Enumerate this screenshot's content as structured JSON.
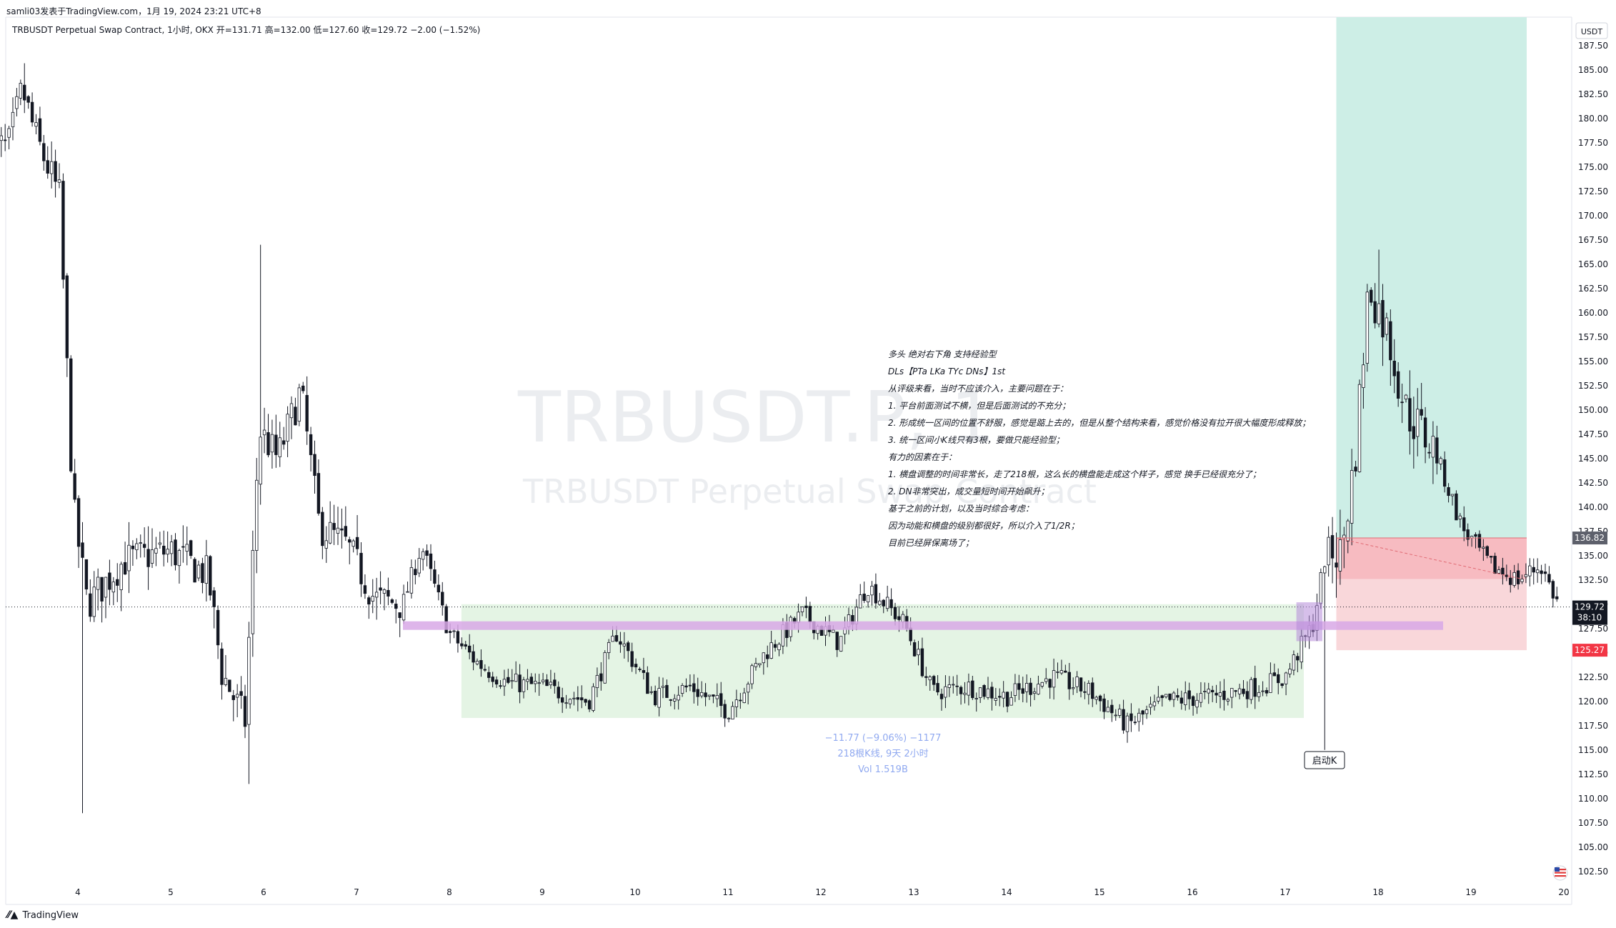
{
  "header_note": "samli03发表于TradingView.com，1月 19, 2024 23:21 UTC+8",
  "symbol": {
    "name": "TRBUSDT Perpetual Swap Contract, 1小时, OKX",
    "open_label": "开=131.71",
    "high_label": "高=132.00",
    "low_label": "低=127.60",
    "close_label": "收=129.72",
    "change_label": "−2.00 (−1.52%)"
  },
  "watermark": {
    "ticker": "TRBUSDT.P, 1",
    "description": "TRBUSDT Perpetual Swap Contract"
  },
  "currency_button": "USDT",
  "note_lines": [
    "多头 绝对右下角 支持经验型",
    "DLs【PTa LKa TYc DNs】1st",
    "从评级来看，当时不应该介入，主要问题在于：",
    "1. 平台前面测试不横，但是后面测试的不充分；",
    "2. 形成统一区间的位置不舒服，感觉是踮上去的，但是从整个结构来看，感觉价格没有拉开很大幅度形成释放；",
    "3. 统一区间小K线只有3根，要做只能经验型；",
    "有力的因素在于：",
    "1. 横盘调整的时间非常长，走了218根，这么长的横盘能走成这个样子，感觉 换手已经很充分了；",
    "2. DN非常突出，成交量短时间开始飙升；",
    "基于之前的计划，以及当时综合考虑：",
    "因为动能和横盘的级别都很好，所以介入了1/2R；",
    "目前已经屏保离场了；"
  ],
  "measure": {
    "line1": "−11.77 (−9.06%) −1177",
    "line2": "218根K线, 9天 2小时",
    "line3": "Vol 1.519B"
  },
  "marker_label": "启动K",
  "price_tags": {
    "entry": "136.82",
    "last": "129.72",
    "countdown": "38:10",
    "stop": "125.27",
    "last_color": "#131722",
    "stop_color": "#f23645",
    "entry_color": "#5d606b"
  },
  "footer": "TradingView",
  "chart_data": {
    "type": "candlestick",
    "title": "TRBUSDT Perpetual Swap Contract, 1小时, OKX",
    "y_axis": {
      "ticks": [
        "187.50",
        "185.00",
        "182.50",
        "180.00",
        "177.50",
        "175.00",
        "172.50",
        "170.00",
        "167.50",
        "165.00",
        "162.50",
        "160.00",
        "157.50",
        "155.00",
        "152.50",
        "150.00",
        "147.50",
        "145.00",
        "142.50",
        "140.00",
        "137.50",
        "135.00",
        "132.50",
        "130.00",
        "127.50",
        "125.00",
        "122.50",
        "120.00",
        "117.50",
        "115.00",
        "112.50",
        "110.00",
        "107.50",
        "105.00",
        "102.50"
      ],
      "range": [
        100.5,
        190.5
      ],
      "position": "right"
    },
    "x_axis": {
      "ticks": [
        "4",
        "5",
        "6",
        "7",
        "8",
        "9",
        "10",
        "11",
        "12",
        "13",
        "14",
        "15",
        "16",
        "17",
        "18",
        "19",
        "20"
      ],
      "unit": "day (Jan 2024)"
    },
    "grid": false,
    "up_color": "#131722",
    "down_color": "#131722",
    "long_position": {
      "entry": 136.82,
      "stop": 125.27,
      "target_top": 190.0,
      "start_day": 17.55,
      "end_day": 19.6,
      "profit_color": "#cdeee6",
      "loss_color": "#f9d7da"
    },
    "trading_range": {
      "high": 130.0,
      "low": 118.3,
      "start_day": 8.13,
      "end_day": 17.2,
      "color": "#e4f4e4"
    },
    "level_line": {
      "price": 127.8,
      "start_day": 7.5,
      "end_day": 18.7,
      "color": "#d8a8e6"
    },
    "last_price": 129.72,
    "key_points": [
      {
        "day": 3.25,
        "price": 177.0
      },
      {
        "day": 3.4,
        "price": 183.0
      },
      {
        "day": 3.55,
        "price": 178.0
      },
      {
        "day": 3.8,
        "price": 172.0
      },
      {
        "day": 3.95,
        "price": 140.0
      },
      {
        "day": 4.1,
        "price": 130.0
      },
      {
        "day": 4.5,
        "price": 134.5
      },
      {
        "day": 5.0,
        "price": 135.5
      },
      {
        "day": 5.4,
        "price": 133.0
      },
      {
        "day": 5.55,
        "price": 123.0
      },
      {
        "day": 5.8,
        "price": 118.0
      },
      {
        "day": 5.95,
        "price": 148.0
      },
      {
        "day": 6.15,
        "price": 145.0
      },
      {
        "day": 6.4,
        "price": 152.0
      },
      {
        "day": 6.6,
        "price": 138.0
      },
      {
        "day": 6.9,
        "price": 136.0
      },
      {
        "day": 7.2,
        "price": 130.5
      },
      {
        "day": 7.5,
        "price": 130.0
      },
      {
        "day": 7.7,
        "price": 136.0
      },
      {
        "day": 8.0,
        "price": 127.0
      },
      {
        "day": 8.3,
        "price": 124.0
      },
      {
        "day": 8.6,
        "price": 122.0
      },
      {
        "day": 9.0,
        "price": 121.5
      },
      {
        "day": 9.5,
        "price": 120.0
      },
      {
        "day": 9.8,
        "price": 127.0
      },
      {
        "day": 10.2,
        "price": 120.5
      },
      {
        "day": 10.6,
        "price": 121.5
      },
      {
        "day": 11.0,
        "price": 119.0
      },
      {
        "day": 11.4,
        "price": 125.0
      },
      {
        "day": 11.8,
        "price": 129.0
      },
      {
        "day": 12.2,
        "price": 126.0
      },
      {
        "day": 12.5,
        "price": 132.0
      },
      {
        "day": 12.9,
        "price": 128.0
      },
      {
        "day": 13.2,
        "price": 121.0
      },
      {
        "day": 13.6,
        "price": 121.5
      },
      {
        "day": 14.0,
        "price": 120.5
      },
      {
        "day": 14.5,
        "price": 122.5
      },
      {
        "day": 14.9,
        "price": 121.0
      },
      {
        "day": 15.3,
        "price": 117.5
      },
      {
        "day": 15.7,
        "price": 120.0
      },
      {
        "day": 16.2,
        "price": 120.5
      },
      {
        "day": 16.7,
        "price": 121.5
      },
      {
        "day": 17.0,
        "price": 122.5
      },
      {
        "day": 17.3,
        "price": 128.0
      },
      {
        "day": 17.45,
        "price": 136.0
      },
      {
        "day": 17.6,
        "price": 135.0
      },
      {
        "day": 17.75,
        "price": 145.0
      },
      {
        "day": 17.9,
        "price": 163.0
      },
      {
        "day": 18.1,
        "price": 158.0
      },
      {
        "day": 18.3,
        "price": 150.0
      },
      {
        "day": 18.6,
        "price": 146.0
      },
      {
        "day": 18.9,
        "price": 138.0
      },
      {
        "day": 19.2,
        "price": 134.0
      },
      {
        "day": 19.5,
        "price": 132.5
      },
      {
        "day": 19.75,
        "price": 134.0
      },
      {
        "day": 19.95,
        "price": 129.72
      }
    ],
    "wick_extremes": [
      {
        "day": 3.4,
        "high": 184.0
      },
      {
        "day": 4.05,
        "low": 108.5
      },
      {
        "day": 5.95,
        "high": 167.0
      },
      {
        "day": 5.85,
        "low": 111.5
      },
      {
        "day": 17.42,
        "low": 115.0
      },
      {
        "day": 18.0,
        "high": 166.5
      }
    ]
  }
}
